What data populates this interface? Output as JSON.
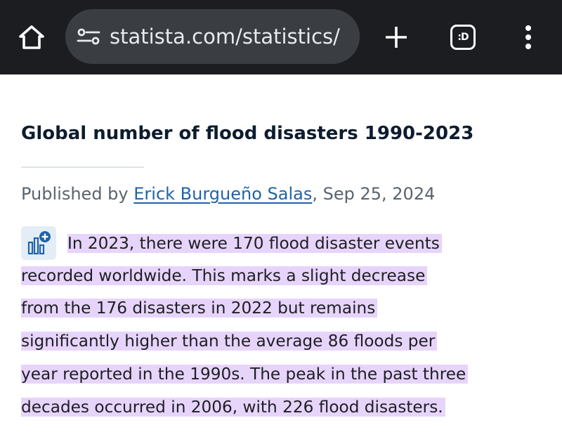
{
  "browser": {
    "url_display": "statista.com/statistics/",
    "tab_count_label": ":D",
    "icons": {
      "home": "home-icon",
      "site_info": "tune-icon",
      "new_tab": "plus-icon",
      "tabs": "tab-switcher-icon",
      "menu": "more-vert-icon"
    },
    "colors": {
      "toolbar_bg": "#1b1d21",
      "urlbar_bg": "#3a3d42"
    }
  },
  "article": {
    "title": "Global number of flood disasters 1990-2023",
    "byline_prefix": "Published by ",
    "author": "Erick Burgueño Salas",
    "byline_date": ", Sep 25, 2024",
    "statistic_icon": "add-statistic-icon",
    "description_lines": [
      "In 2023, there were 170 flood disaster events",
      "recorded worldwide. This marks a slight decrease",
      "from the 176 disasters in 2022 but remains",
      "significantly higher than the average 86 floods per",
      "year reported in the 1990s. The peak in the past three",
      "decades occurred in 2006, with 226 flood disasters."
    ],
    "colors": {
      "title": "#0e1c2e",
      "link": "#1f63a8",
      "highlight": "#e7d4fb"
    }
  }
}
